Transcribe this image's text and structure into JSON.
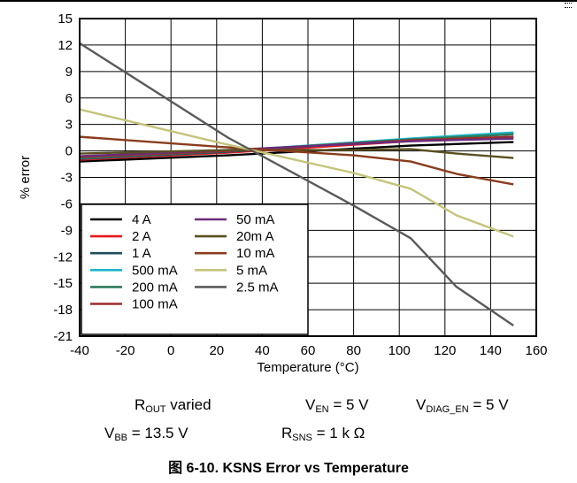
{
  "figure": {
    "caption": "图 6-10. KSNS Error vs Temperature"
  },
  "conditions": {
    "rout": {
      "main": "R",
      "sub": "OUT",
      "rest": " varied"
    },
    "ven": {
      "main": "V",
      "sub": "EN",
      "rest": " = 5 V"
    },
    "vdiag": {
      "main": "V",
      "sub": "DIAG_EN",
      "rest": " = 5 V"
    },
    "vbb": {
      "main": "V",
      "sub": "BB",
      "rest": " = 13.5 V"
    },
    "rsns": {
      "main": "R",
      "sub": "SNS",
      "rest": " = 1 k Ω"
    }
  },
  "chart_data": {
    "type": "line",
    "title": "",
    "xlabel": "Temperature (°C)",
    "ylabel": "% error",
    "xlim": [
      -40,
      160
    ],
    "ylim": [
      -21,
      15
    ],
    "xticks": [
      -40,
      -20,
      0,
      20,
      40,
      60,
      80,
      100,
      120,
      140,
      160
    ],
    "yticks": [
      15,
      12,
      9,
      6,
      3,
      0,
      -3,
      -6,
      -9,
      -12,
      -15,
      -18,
      -21
    ],
    "grid": true,
    "legend_position": "bottom-left",
    "series": [
      {
        "name": "4 A",
        "color": "#000000",
        "x": [
          -40,
          25,
          105,
          150
        ],
        "y": [
          -1.2,
          -0.5,
          0.6,
          1.0
        ]
      },
      {
        "name": "2 A",
        "color": "#e8191f",
        "x": [
          -40,
          25,
          105,
          150
        ],
        "y": [
          -1.0,
          -0.2,
          1.1,
          1.6
        ]
      },
      {
        "name": "1 A",
        "color": "#1f4e5a",
        "x": [
          -40,
          25,
          105,
          150
        ],
        "y": [
          -0.9,
          -0.1,
          1.3,
          1.9
        ]
      },
      {
        "name": "500 mA",
        "color": "#1bb6c9",
        "x": [
          -40,
          25,
          105,
          150
        ],
        "y": [
          -0.8,
          0.0,
          1.4,
          2.1
        ]
      },
      {
        "name": "200 mA",
        "color": "#2e7a5a",
        "x": [
          -40,
          25,
          105,
          150
        ],
        "y": [
          -0.8,
          0.0,
          1.3,
          1.9
        ]
      },
      {
        "name": "100 mA",
        "color": "#9c2c2c",
        "x": [
          -40,
          25,
          105,
          150
        ],
        "y": [
          -0.7,
          0.0,
          1.2,
          1.6
        ]
      },
      {
        "name": "50 mA",
        "color": "#6a2c7a",
        "x": [
          -40,
          25,
          105,
          150
        ],
        "y": [
          -0.6,
          0.1,
          1.1,
          1.4
        ]
      },
      {
        "name": "20m A",
        "color": "#5a5020",
        "x": [
          -40,
          25,
          80,
          105,
          125,
          150
        ],
        "y": [
          -0.3,
          0.1,
          0.1,
          0.2,
          -0.3,
          -0.8
        ]
      },
      {
        "name": "10 mA",
        "color": "#8a3c1c",
        "x": [
          -40,
          25,
          80,
          105,
          125,
          150
        ],
        "y": [
          1.6,
          0.4,
          -0.5,
          -1.2,
          -2.6,
          -3.8
        ]
      },
      {
        "name": "5 mA",
        "color": "#c4c47a",
        "x": [
          -40,
          25,
          80,
          105,
          125,
          150
        ],
        "y": [
          4.7,
          0.7,
          -2.5,
          -4.3,
          -7.3,
          -9.7
        ]
      },
      {
        "name": "2.5 mA",
        "color": "#5a5a5a",
        "x": [
          -40,
          25,
          80,
          105,
          125,
          150
        ],
        "y": [
          12.2,
          1.5,
          -6.2,
          -9.9,
          -15.4,
          -19.8
        ]
      }
    ]
  }
}
